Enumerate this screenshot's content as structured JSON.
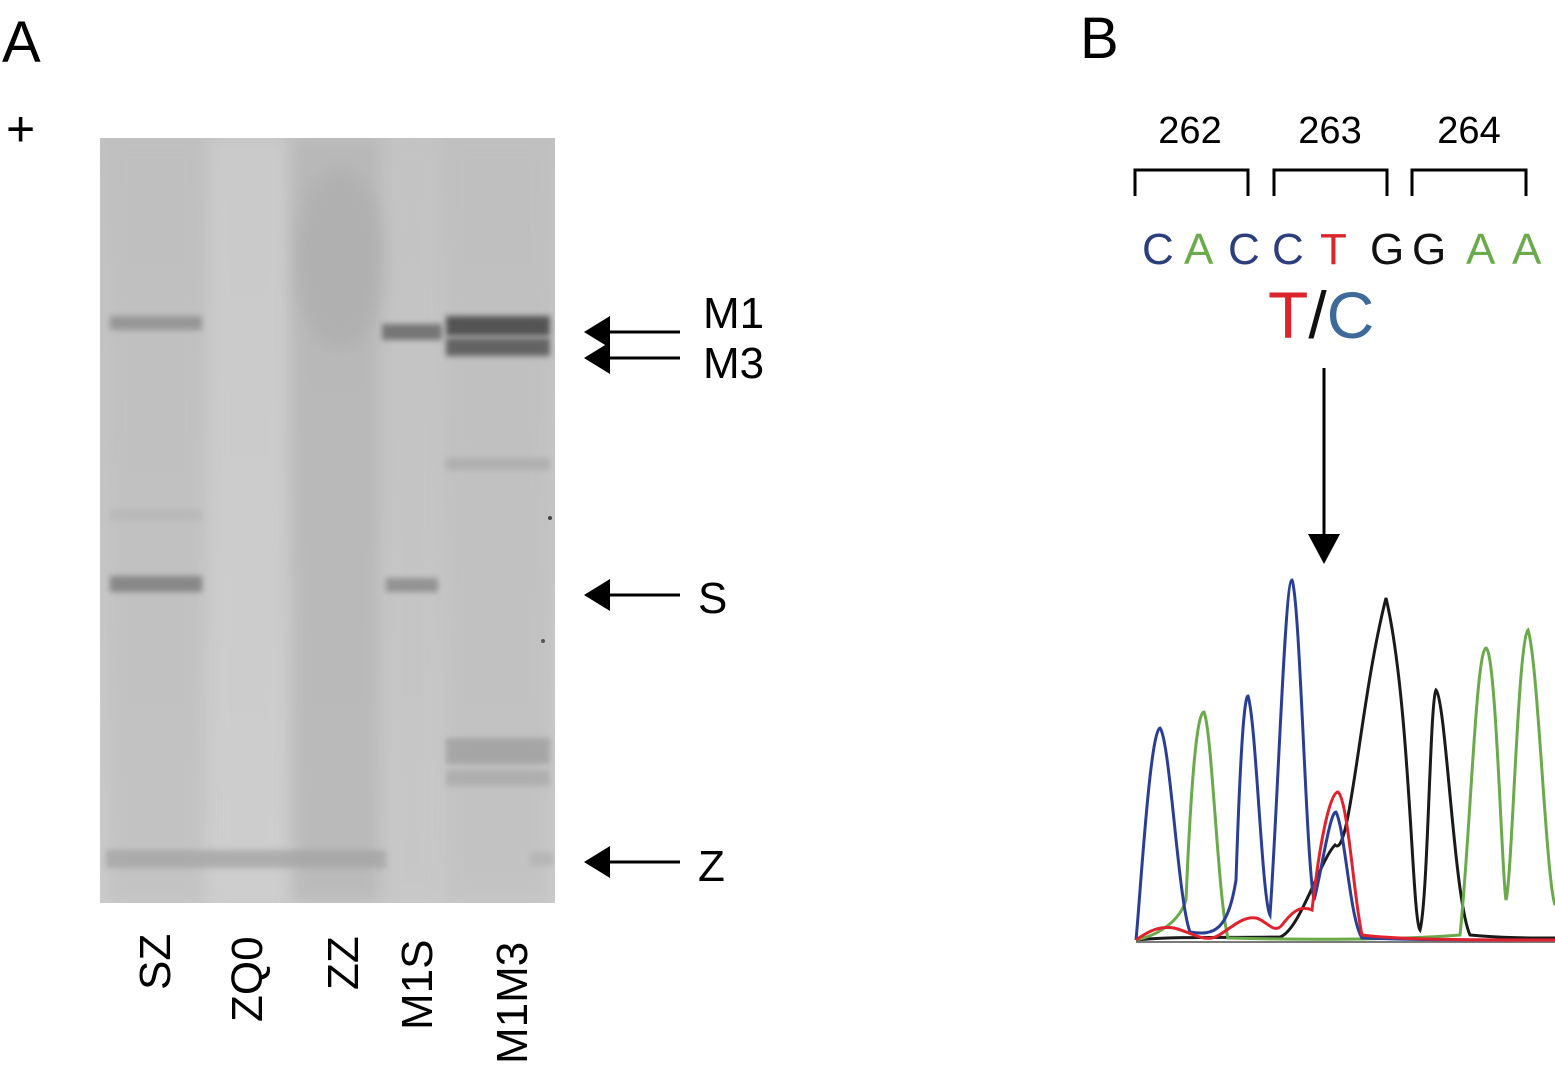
{
  "panel_a": {
    "letter": "A",
    "polarity": "+",
    "band_labels": [
      "M1",
      "M3",
      "S",
      "Z"
    ],
    "lane_labels": [
      "SZ",
      "ZQ0",
      "ZZ",
      "M1S",
      "M1M3"
    ]
  },
  "panel_b": {
    "letter": "B",
    "codons": [
      "262",
      "263",
      "264"
    ],
    "sequence": [
      "C",
      "A",
      "C",
      "C",
      "T",
      "G",
      "G",
      "A",
      "A"
    ],
    "variant": {
      "ref": "T",
      "sep": "/",
      "alt": "C"
    },
    "colors": {
      "C": "#2c3e7c",
      "A": "#6aaa4a",
      "T": "#d9252b",
      "G": "#111111",
      "variant_C": "#3d6a9a"
    }
  }
}
